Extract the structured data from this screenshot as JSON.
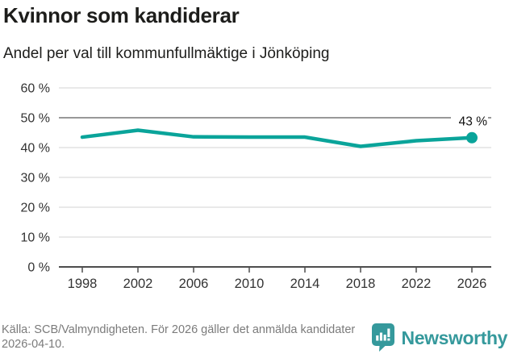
{
  "header": {
    "title": "Kvinnor som kandiderar",
    "subtitle": "Andel per val till kommunfullmäktige i Jönköping"
  },
  "footer": {
    "source": "Källa: SCB/Valmyndigheten. För 2026 gäller det anmälda kandidater 2026-04-10.",
    "brand": "Newsworthy"
  },
  "colors": {
    "line": "#0aa49a",
    "grid": "#dcdcdc",
    "grid_emphasis": "#8a8a8a",
    "axis": "#4d4d4d",
    "tick_label": "#333333",
    "end_label": "#111111",
    "brand": "#35999c",
    "text": "#1d1d1b",
    "muted": "#7b7b7b"
  },
  "chart_data": {
    "type": "line",
    "title": "Kvinnor som kandiderar",
    "subtitle": "Andel per val till kommunfullmäktige i Jönköping",
    "categories": [
      "1998",
      "2002",
      "2006",
      "2010",
      "2014",
      "2018",
      "2022",
      "2026"
    ],
    "values": [
      43.5,
      45.8,
      43.6,
      43.5,
      43.5,
      40.4,
      42.3,
      43.3
    ],
    "ylim": [
      0,
      60
    ],
    "yticks": [
      0,
      10,
      20,
      30,
      40,
      50,
      60
    ],
    "ytick_labels": [
      "0 %",
      "10 %",
      "20 %",
      "30 %",
      "40 %",
      "50 %",
      "60 %"
    ],
    "emphasized_gridline": 50,
    "grid": true,
    "legend_position": "none",
    "end_label": "43 %",
    "xlabel": "",
    "ylabel": ""
  }
}
